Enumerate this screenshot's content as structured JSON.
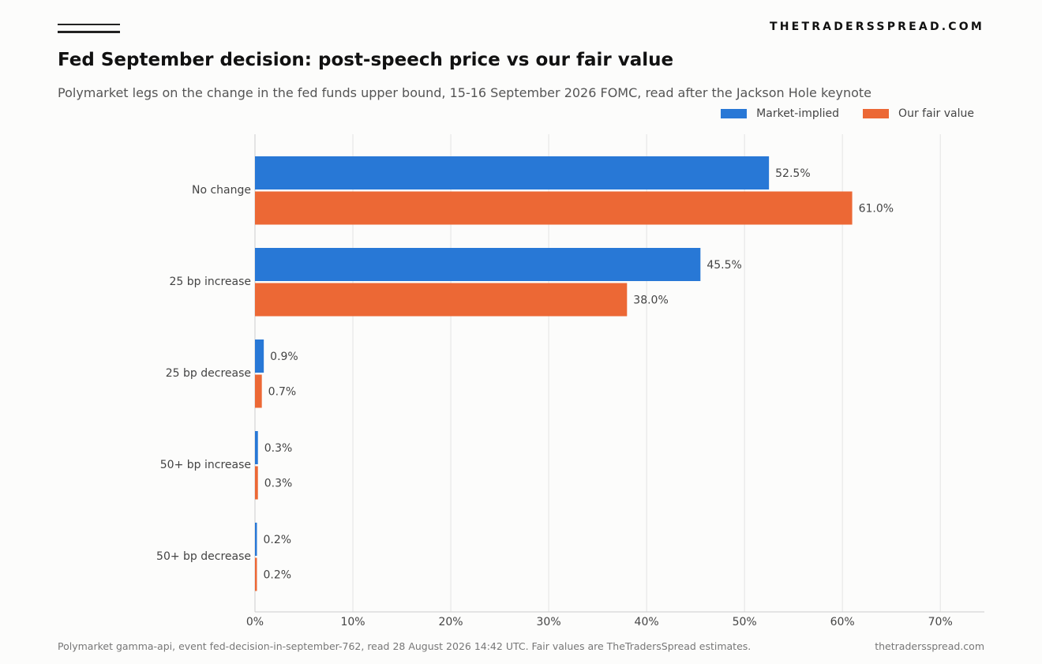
{
  "brand": "THETRADERSSPREAD.COM",
  "footer": {
    "source": "Polymarket gamma-api, event fed-decision-in-september-762, read 28 August 2026 14:42 UTC. Fair values are TheTradersSpread estimates.",
    "site": "thetradersspread.com"
  },
  "colors": {
    "market": "#2878d6",
    "fair": "#ec6835",
    "grid": "#e3e3e3",
    "axis": "#cccccc"
  },
  "chart_data": {
    "type": "bar",
    "orientation": "horizontal",
    "title": "Fed September decision: post-speech price vs our fair value",
    "subtitle": "Polymarket legs on the change in the fed funds upper bound, 15-16 September 2026 FOMC, read after the Jackson Hole keynote",
    "categories": [
      "No change",
      "25 bp increase",
      "25 bp decrease",
      "50+ bp increase",
      "50+ bp decrease"
    ],
    "series": [
      {
        "name": "Market-implied",
        "values": [
          52.5,
          45.5,
          0.9,
          0.3,
          0.2
        ],
        "labels": [
          "52.5%",
          "45.5%",
          "0.9%",
          "0.3%",
          "0.2%"
        ]
      },
      {
        "name": "Our fair value",
        "values": [
          61.0,
          38.0,
          0.7,
          0.3,
          0.2
        ],
        "labels": [
          "61.0%",
          "38.0%",
          "0.7%",
          "0.3%",
          "0.2%"
        ]
      }
    ],
    "xlim": [
      0,
      74.5
    ],
    "xticks": [
      0,
      10,
      20,
      30,
      40,
      50,
      60,
      70
    ],
    "xtick_labels": [
      "0%",
      "10%",
      "20%",
      "30%",
      "40%",
      "50%",
      "60%",
      "70%"
    ],
    "grid": "vertical",
    "legend": "top-right"
  }
}
